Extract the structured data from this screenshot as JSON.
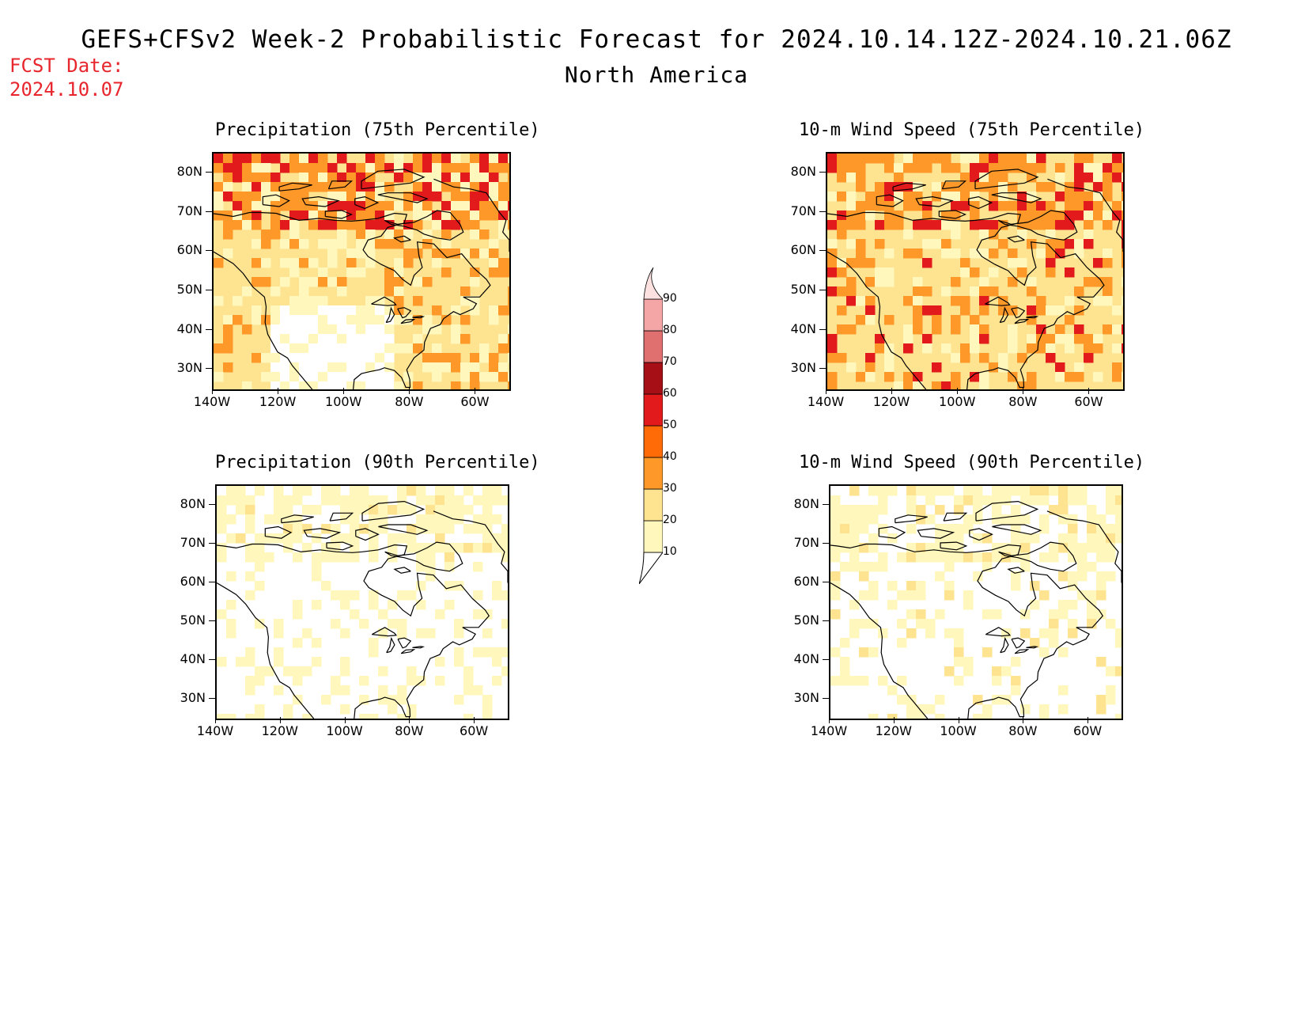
{
  "header": {
    "title": "GEFS+CFSv2 Week-2 Probabilistic Forecast for 2024.10.14.12Z-2024.10.21.06Z",
    "subtitle": "North America",
    "fcst_label": "FCST Date:",
    "fcst_date": "2024.10.07"
  },
  "panels": [
    {
      "title": "Precipitation (75th Percentile)"
    },
    {
      "title": "10-m Wind Speed (75th Percentile)"
    },
    {
      "title": "Precipitation (90th Percentile)"
    },
    {
      "title": "10-m Wind Speed (90th Percentile)"
    }
  ],
  "axes": {
    "lat_labels": [
      "80N",
      "70N",
      "60N",
      "50N",
      "40N",
      "30N"
    ],
    "lon_labels": [
      "140W",
      "120W",
      "100W",
      "80W",
      "60W"
    ],
    "lat_range": [
      25,
      85
    ],
    "lon_range": [
      -140,
      -50
    ]
  },
  "colorbar": {
    "levels": [
      "10",
      "20",
      "30",
      "40",
      "50",
      "60",
      "70",
      "80",
      "90"
    ],
    "colors": [
      "#ffffff",
      "#fff7bc",
      "#fee391",
      "#fe9929",
      "#fe6b07",
      "#e31a1c",
      "#a50f15",
      "#e07070",
      "#f4a6a6",
      "#fde0e0"
    ]
  }
}
